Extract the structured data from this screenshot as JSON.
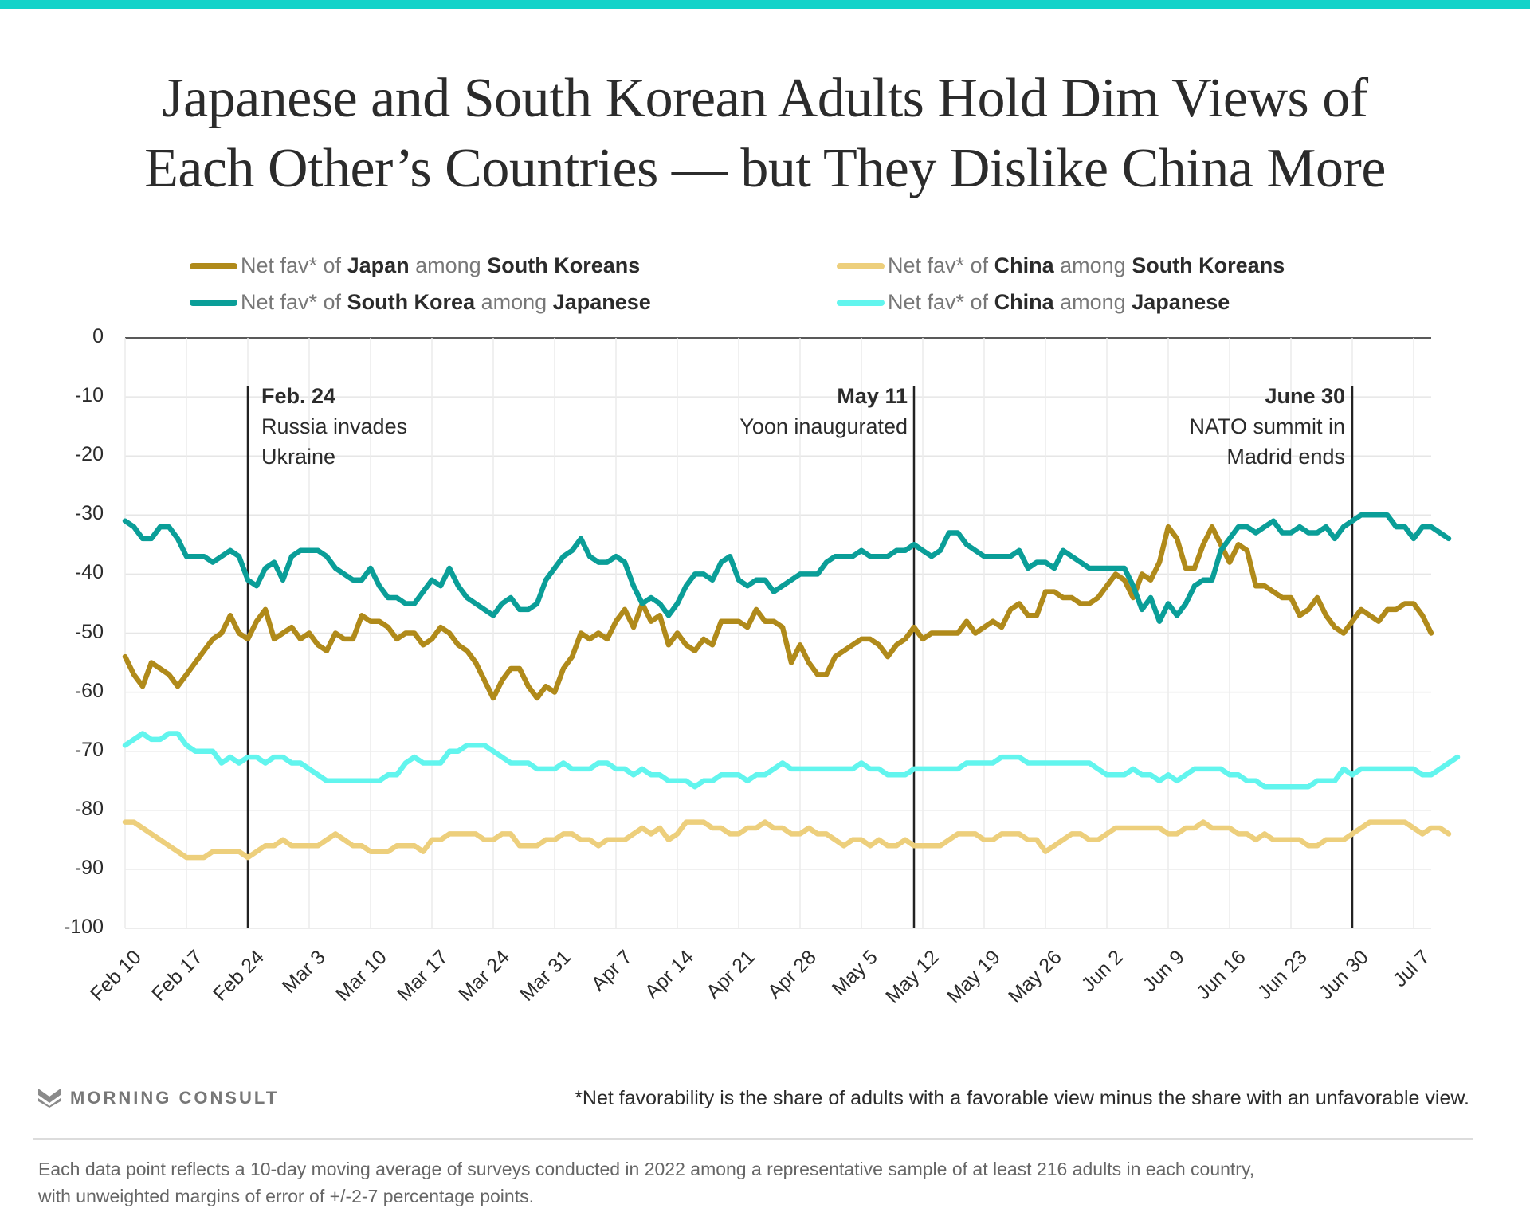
{
  "header": {
    "title_line1": "Japanese and South Korean Adults Hold Dim Views of",
    "title_line2": "Each Other’s Countries — but They Dislike China More"
  },
  "legend": [
    {
      "prefix": "Net fav* of ",
      "subject": "Japan",
      "mid": " among ",
      "group": "South Koreans",
      "color": "#b08a1a"
    },
    {
      "prefix": "Net fav* of ",
      "subject": "China",
      "mid": " among ",
      "group": "South Koreans",
      "color": "#edcf7c"
    },
    {
      "prefix": "Net fav* of ",
      "subject": "South Korea",
      "mid": " among ",
      "group": "Japanese",
      "color": "#0a9e98"
    },
    {
      "prefix": "Net fav* of ",
      "subject": "China",
      "mid": " among ",
      "group": "Japanese",
      "color": "#62f5ee"
    }
  ],
  "annotations": [
    {
      "date": "Feb. 24",
      "line1": "Russia invades",
      "line2": "Ukraine",
      "align": "left"
    },
    {
      "date": "May 11",
      "line1": "Yoon inaugurated",
      "line2": "",
      "align": "right"
    },
    {
      "date": "June 30",
      "line1": "NATO summit in",
      "line2": "Madrid ends",
      "align": "right"
    }
  ],
  "footer": {
    "brand": "MORNING CONSULT",
    "footnote": "*Net favorability is the share of adults with a favorable view minus the share with an unfavorable view.",
    "methodology_line1": "Each data point reflects a 10-day moving average of surveys conducted in 2022 among a representative sample of at least 216 adults in each country,",
    "methodology_line2": "with unweighted margins of error of +/-2-7 percentage points."
  },
  "chart_data": {
    "type": "line",
    "title": "Japanese and South Korean Adults Hold Dim Views of Each Other’s Countries — but They Dislike China More",
    "xlabel": "",
    "ylabel": "",
    "ylim": [
      -100,
      0
    ],
    "yticks": [
      0,
      -10,
      -20,
      -30,
      -40,
      -50,
      -60,
      -70,
      -80,
      -90,
      -100
    ],
    "ytick_labels": [
      "0",
      "-10",
      "-20",
      "-30",
      "-40",
      "-50",
      "-60",
      "-70",
      "-80",
      "-90",
      "-100"
    ],
    "x_start": "2022-02-10",
    "x_end": "2022-07-10",
    "x_tick_labels": [
      "Feb 10",
      "Feb 17",
      "Feb 24",
      "Mar 3",
      "Mar 10",
      "Mar 17",
      "Mar 24",
      "Mar 31",
      "Apr 7",
      "Apr 14",
      "Apr 21",
      "Apr 28",
      "May 5",
      "May 12",
      "May 19",
      "May 26",
      "Jun 2",
      "Jun 9",
      "Jun 16",
      "Jun 23",
      "Jun 30",
      "Jul 7"
    ],
    "x_tick_day_offsets": [
      0,
      7,
      14,
      21,
      28,
      35,
      42,
      49,
      56,
      63,
      70,
      77,
      84,
      91,
      98,
      105,
      112,
      119,
      126,
      133,
      140,
      147
    ],
    "grid": true,
    "legend_position": "top",
    "event_lines": [
      {
        "label": "Feb. 24",
        "day_offset": 14
      },
      {
        "label": "May 11",
        "day_offset": 90
      },
      {
        "label": "June 30",
        "day_offset": 140
      }
    ],
    "series": [
      {
        "name": "Net fav* of Japan among South Koreans",
        "color": "#b08a1a",
        "values": [
          -54,
          -57,
          -59,
          -55,
          -56,
          -57,
          -59,
          -57,
          -55,
          -53,
          -51,
          -50,
          -47,
          -50,
          -51,
          -48,
          -46,
          -51,
          -50,
          -49,
          -51,
          -50,
          -52,
          -53,
          -50,
          -51,
          -51,
          -47,
          -48,
          -48,
          -49,
          -51,
          -50,
          -50,
          -52,
          -51,
          -49,
          -50,
          -52,
          -53,
          -55,
          -58,
          -61,
          -58,
          -56,
          -56,
          -59,
          -61,
          -59,
          -60,
          -56,
          -54,
          -50,
          -51,
          -50,
          -51,
          -48,
          -46,
          -49,
          -45,
          -48,
          -47,
          -52,
          -50,
          -52,
          -53,
          -51,
          -52,
          -48,
          -48,
          -48,
          -49,
          -46,
          -48,
          -48,
          -49,
          -55,
          -52,
          -55,
          -57,
          -57,
          -54,
          -53,
          -52,
          -51,
          -51,
          -52,
          -54,
          -52,
          -51,
          -49,
          -51,
          -50,
          -50,
          -50,
          -50,
          -48,
          -50,
          -49,
          -48,
          -49,
          -46,
          -45,
          -47,
          -47,
          -43,
          -43,
          -44,
          -44,
          -45,
          -45,
          -44,
          -42,
          -40,
          -41,
          -44,
          -40,
          -41,
          -38,
          -32,
          -34,
          -39,
          -39,
          -35,
          -32,
          -35,
          -38,
          -35,
          -36,
          -42,
          -42,
          -43,
          -44,
          -44,
          -47,
          -46,
          -44,
          -47,
          -49,
          -50,
          -48,
          -46,
          -47,
          -48,
          -46,
          -46,
          -45,
          -45,
          -47,
          -50
        ]
      },
      {
        "name": "Net fav* of China among South Koreans",
        "color": "#edcf7c",
        "values": [
          -82,
          -82,
          -83,
          -84,
          -85,
          -86,
          -87,
          -88,
          -88,
          -88,
          -87,
          -87,
          -87,
          -87,
          -88,
          -87,
          -86,
          -86,
          -85,
          -86,
          -86,
          -86,
          -86,
          -85,
          -84,
          -85,
          -86,
          -86,
          -87,
          -87,
          -87,
          -86,
          -86,
          -86,
          -87,
          -85,
          -85,
          -84,
          -84,
          -84,
          -84,
          -85,
          -85,
          -84,
          -84,
          -86,
          -86,
          -86,
          -85,
          -85,
          -84,
          -84,
          -85,
          -85,
          -86,
          -85,
          -85,
          -85,
          -84,
          -83,
          -84,
          -83,
          -85,
          -84,
          -82,
          -82,
          -82,
          -83,
          -83,
          -84,
          -84,
          -83,
          -83,
          -82,
          -83,
          -83,
          -84,
          -84,
          -83,
          -84,
          -84,
          -85,
          -86,
          -85,
          -85,
          -86,
          -85,
          -86,
          -86,
          -85,
          -86,
          -86,
          -86,
          -86,
          -85,
          -84,
          -84,
          -84,
          -85,
          -85,
          -84,
          -84,
          -84,
          -85,
          -85,
          -87,
          -86,
          -85,
          -84,
          -84,
          -85,
          -85,
          -84,
          -83,
          -83,
          -83,
          -83,
          -83,
          -83,
          -84,
          -84,
          -83,
          -83,
          -82,
          -83,
          -83,
          -83,
          -84,
          -84,
          -85,
          -84,
          -85,
          -85,
          -85,
          -85,
          -86,
          -86,
          -85,
          -85,
          -85,
          -84,
          -83,
          -82,
          -82,
          -82,
          -82,
          -82,
          -83,
          -84,
          -83,
          -83,
          -84
        ]
      },
      {
        "name": "Net fav* of South Korea among Japanese",
        "color": "#0a9e98",
        "values": [
          -31,
          -32,
          -34,
          -34,
          -32,
          -32,
          -34,
          -37,
          -37,
          -37,
          -38,
          -37,
          -36,
          -37,
          -41,
          -42,
          -39,
          -38,
          -41,
          -37,
          -36,
          -36,
          -36,
          -37,
          -39,
          -40,
          -41,
          -41,
          -39,
          -42,
          -44,
          -44,
          -45,
          -45,
          -43,
          -41,
          -42,
          -39,
          -42,
          -44,
          -45,
          -46,
          -47,
          -45,
          -44,
          -46,
          -46,
          -45,
          -41,
          -39,
          -37,
          -36,
          -34,
          -37,
          -38,
          -38,
          -37,
          -38,
          -42,
          -45,
          -44,
          -45,
          -47,
          -45,
          -42,
          -40,
          -40,
          -41,
          -38,
          -37,
          -41,
          -42,
          -41,
          -41,
          -43,
          -42,
          -41,
          -40,
          -40,
          -40,
          -38,
          -37,
          -37,
          -37,
          -36,
          -37,
          -37,
          -37,
          -36,
          -36,
          -35,
          -36,
          -37,
          -36,
          -33,
          -33,
          -35,
          -36,
          -37,
          -37,
          -37,
          -37,
          -36,
          -39,
          -38,
          -38,
          -39,
          -36,
          -37,
          -38,
          -39,
          -39,
          -39,
          -39,
          -39,
          -42,
          -46,
          -44,
          -48,
          -45,
          -47,
          -45,
          -42,
          -41,
          -41,
          -36,
          -34,
          -32,
          -32,
          -33,
          -32,
          -31,
          -33,
          -33,
          -32,
          -33,
          -33,
          -32,
          -34,
          -32,
          -31,
          -30,
          -30,
          -30,
          -30,
          -32,
          -32,
          -34,
          -32,
          -32,
          -33,
          -34
        ]
      },
      {
        "name": "Net fav* of China among Japanese",
        "color": "#62f5ee",
        "values": [
          -69,
          -68,
          -67,
          -68,
          -68,
          -67,
          -67,
          -69,
          -70,
          -70,
          -70,
          -72,
          -71,
          -72,
          -71,
          -71,
          -72,
          -71,
          -71,
          -72,
          -72,
          -73,
          -74,
          -75,
          -75,
          -75,
          -75,
          -75,
          -75,
          -75,
          -74,
          -74,
          -72,
          -71,
          -72,
          -72,
          -72,
          -70,
          -70,
          -69,
          -69,
          -69,
          -70,
          -71,
          -72,
          -72,
          -72,
          -73,
          -73,
          -73,
          -72,
          -73,
          -73,
          -73,
          -72,
          -72,
          -73,
          -73,
          -74,
          -73,
          -74,
          -74,
          -75,
          -75,
          -75,
          -76,
          -75,
          -75,
          -74,
          -74,
          -74,
          -75,
          -74,
          -74,
          -73,
          -72,
          -73,
          -73,
          -73,
          -73,
          -73,
          -73,
          -73,
          -73,
          -72,
          -73,
          -73,
          -74,
          -74,
          -74,
          -73,
          -73,
          -73,
          -73,
          -73,
          -73,
          -72,
          -72,
          -72,
          -72,
          -71,
          -71,
          -71,
          -72,
          -72,
          -72,
          -72,
          -72,
          -72,
          -72,
          -72,
          -73,
          -74,
          -74,
          -74,
          -73,
          -74,
          -74,
          -75,
          -74,
          -75,
          -74,
          -73,
          -73,
          -73,
          -73,
          -74,
          -74,
          -75,
          -75,
          -76,
          -76,
          -76,
          -76,
          -76,
          -76,
          -75,
          -75,
          -75,
          -73,
          -74,
          -73,
          -73,
          -73,
          -73,
          -73,
          -73,
          -73,
          -74,
          -74,
          -73,
          -72,
          -71
        ]
      }
    ]
  }
}
